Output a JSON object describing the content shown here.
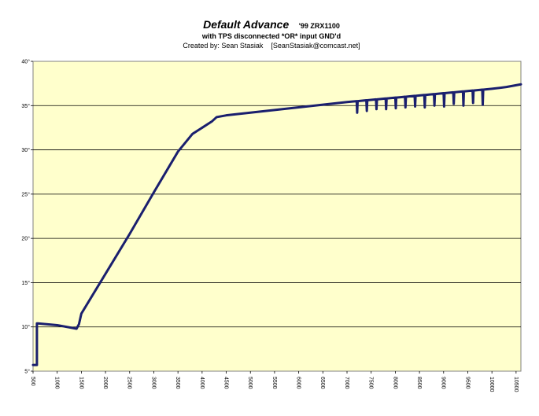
{
  "chart_data": {
    "type": "line",
    "title": "Default Advance",
    "title_suffix": "'99 ZRX1100",
    "subtitle": "with TPS disconnected *OR* input GND'd",
    "credit": "Created by: Sean Stasiak    [SeanStasiak@comcast.net]",
    "xlabel": "",
    "ylabel": "",
    "xlim": [
      500,
      10600
    ],
    "ylim": [
      5,
      40
    ],
    "x_ticks": [
      500,
      1000,
      1500,
      2000,
      2500,
      3000,
      3500,
      4000,
      4500,
      5000,
      5500,
      6000,
      6500,
      7000,
      7500,
      8000,
      8500,
      9000,
      9500,
      10000,
      10500
    ],
    "x_tick_labels": [
      "500",
      "1000",
      "1500",
      "2000",
      "2500",
      "3000",
      "3500",
      "4000",
      "4500",
      "5000",
      "5500",
      "6000",
      "6500",
      "7000",
      "7500",
      "8000",
      "8500",
      "9000",
      "9500",
      "10000",
      "10500"
    ],
    "y_ticks": [
      5,
      10,
      15,
      20,
      25,
      30,
      35,
      40
    ],
    "y_tick_labels": [
      "5°",
      "10°",
      "15°",
      "20°",
      "25°",
      "30°",
      "35°",
      "40°"
    ],
    "grid": "horizontal",
    "plot_background": "#ffffcc",
    "line_color": "#1a1f6e",
    "series": [
      {
        "values_x": [
          500,
          580,
          580,
          600,
          1000,
          1400,
          1450,
          1500,
          2000,
          2500,
          3000,
          3500,
          3800,
          4000,
          4200,
          4300,
          4500,
          5000,
          5500,
          6000,
          6500,
          7000,
          7200,
          7210,
          7220,
          7400,
          7410,
          7420,
          7600,
          7610,
          7620,
          7800,
          7810,
          7820,
          8000,
          8010,
          8020,
          8200,
          8210,
          8220,
          8400,
          8410,
          8420,
          8600,
          8610,
          8620,
          8800,
          8810,
          8820,
          9000,
          9010,
          9020,
          9200,
          9210,
          9220,
          9400,
          9410,
          9420,
          9600,
          9610,
          9620,
          9800,
          9810,
          9820,
          10000,
          10300,
          10600
        ],
        "values_y": [
          5.7,
          5.7,
          10.4,
          10.4,
          10.2,
          9.8,
          10.3,
          11.5,
          16.0,
          20.5,
          25.2,
          29.8,
          31.8,
          32.5,
          33.2,
          33.7,
          33.9,
          34.2,
          34.5,
          34.8,
          35.1,
          35.4,
          35.5,
          34.2,
          35.5,
          35.6,
          34.4,
          35.6,
          35.7,
          34.6,
          35.7,
          35.8,
          34.6,
          35.8,
          35.9,
          34.7,
          35.9,
          36.0,
          34.8,
          36.0,
          36.1,
          34.9,
          36.1,
          36.2,
          34.8,
          36.2,
          36.3,
          35.0,
          36.3,
          36.4,
          34.9,
          36.4,
          36.5,
          35.2,
          36.5,
          36.6,
          35.0,
          36.6,
          36.7,
          35.3,
          36.7,
          36.8,
          35.1,
          36.8,
          36.9,
          37.1,
          37.4
        ]
      }
    ]
  }
}
